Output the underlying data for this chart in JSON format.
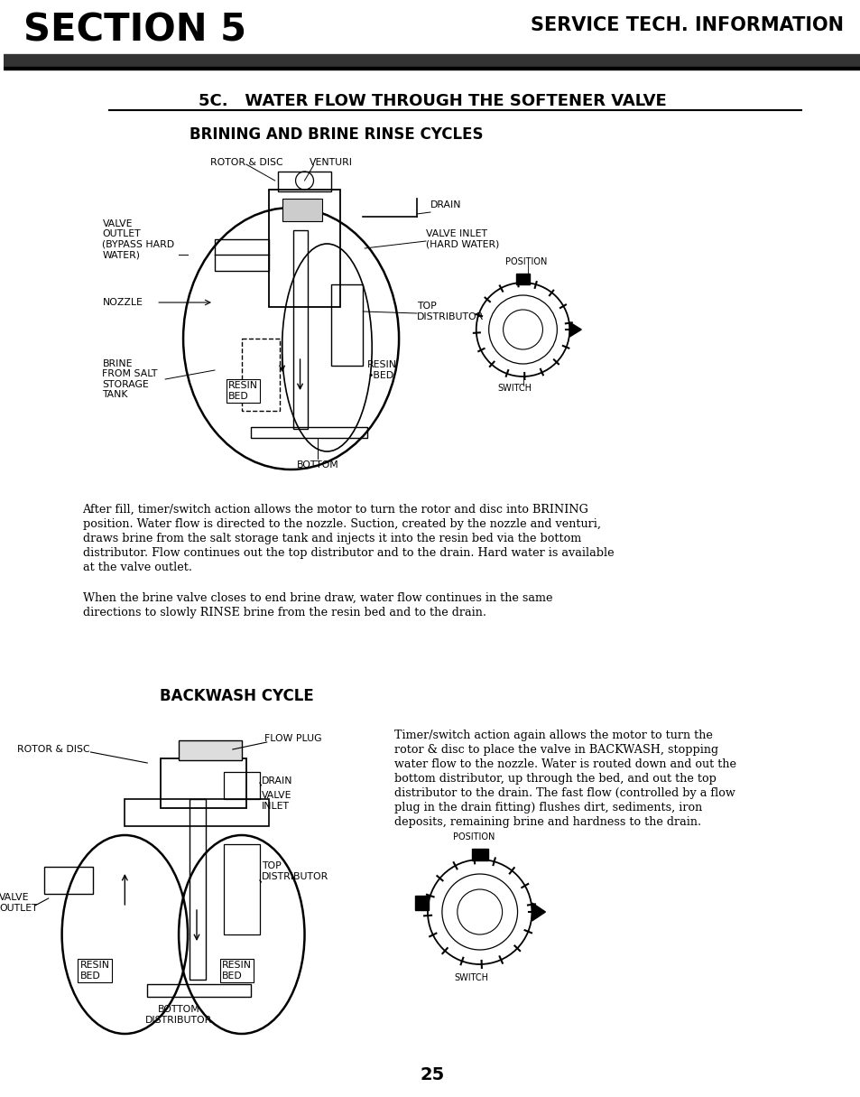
{
  "background_color": "#ffffff",
  "page_width": 9.54,
  "page_height": 12.15,
  "header_title_left": "SECTION 5",
  "header_title_right": "SERVICE TECH. INFORMATION",
  "section_title": "5C.   WATER FLOW THROUGH THE SOFTENER VALVE",
  "brining_heading": "BRINING AND BRINE RINSE CYCLES",
  "backwash_heading": "BACKWASH CYCLE",
  "paragraph1_line1": "After fill, timer/switch action allows the motor to turn the rotor and disc into BRINING",
  "paragraph1_line2": "position. Water flow is directed to the nozzle. Suction, created by the nozzle and venturi,",
  "paragraph1_line3": "draws brine from the salt storage tank and injects it into the resin bed via the bottom",
  "paragraph1_line4": "distributor. Flow continues out the top distributor and to the drain. Hard water is available",
  "paragraph1_line5": "at the valve outlet.",
  "paragraph2_line1": "When the brine valve closes to end brine draw, water flow continues in the same",
  "paragraph2_line2": "directions to slowly RINSE brine from the resin bed and to the drain.",
  "paragraph3_line1": "Timer/switch action again allows the motor to turn the",
  "paragraph3_line2": "rotor & disc to place the valve in BACKWASH, stopping",
  "paragraph3_line3": "water flow to the nozzle. Water is routed down and out the",
  "paragraph3_line4": "bottom distributor, up through the bed, and out the top",
  "paragraph3_line5": "distributor to the drain. The fast flow (controlled by a flow",
  "paragraph3_line6": "plug in the drain fitting) flushes dirt, sediments, iron",
  "paragraph3_line7": "deposits, remaining brine and hardness to the drain.",
  "page_number": "25"
}
